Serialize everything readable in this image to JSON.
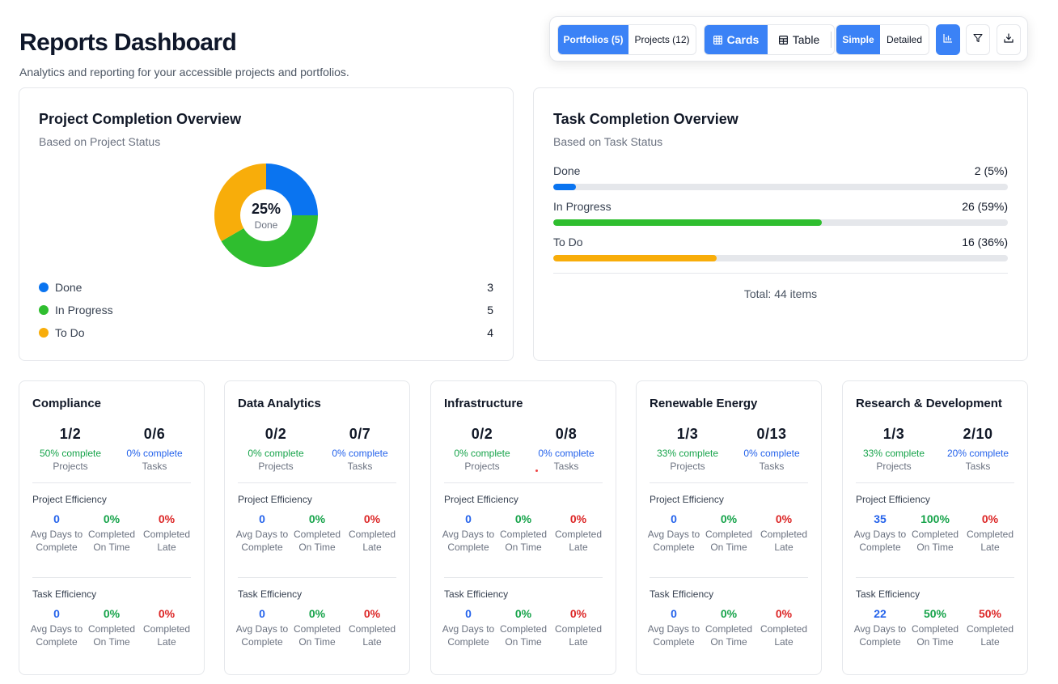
{
  "header": {
    "title": "Reports Dashboard",
    "subtitle": "Analytics and reporting for your accessible projects and portfolios."
  },
  "toolbar": {
    "scope": [
      {
        "label": "Portfolios (5)",
        "active": true
      },
      {
        "label": "Projects (12)",
        "active": false
      }
    ],
    "view": [
      {
        "label": "Cards",
        "icon": "grid-icon",
        "active": true
      },
      {
        "label": "Table",
        "icon": "table-icon",
        "active": false
      }
    ],
    "detail": [
      {
        "label": "Simple",
        "active": true
      },
      {
        "label": "Detailed",
        "active": false
      }
    ],
    "icons": [
      "chart-icon",
      "filter-icon",
      "download-icon"
    ]
  },
  "colors": {
    "done": "#0a74f0",
    "in_progress": "#2fbe2f",
    "to_do": "#f8ad0a",
    "accent": "#3b82f6"
  },
  "project_completion": {
    "title": "Project Completion Overview",
    "subtitle": "Based on Project Status",
    "center_value": "25%",
    "center_label": "Done",
    "segments": [
      {
        "label": "Done",
        "value": 3
      },
      {
        "label": "In Progress",
        "value": 5
      },
      {
        "label": "To Do",
        "value": 4
      }
    ]
  },
  "task_completion": {
    "title": "Task Completion Overview",
    "subtitle": "Based on Task Status",
    "rows": [
      {
        "label": "Done",
        "value_text": "2 (5%)",
        "fraction": 0.05
      },
      {
        "label": "In Progress",
        "value_text": "26 (59%)",
        "fraction": 0.59
      },
      {
        "label": "To Do",
        "value_text": "16 (36%)",
        "fraction": 0.36
      }
    ],
    "total": "Total: 44 items"
  },
  "portfolio_labels": {
    "projects": "Projects",
    "tasks": "Tasks",
    "project_efficiency": "Project Efficiency",
    "task_efficiency": "Task Efficiency",
    "avg_days": "Avg Days to Complete",
    "on_time": "Completed On Time",
    "late": "Completed Late"
  },
  "portfolios": [
    {
      "name": "Compliance",
      "projects": "1/2",
      "projects_pct": "50% complete",
      "tasks": "0/6",
      "tasks_pct": "0% complete",
      "project_eff": {
        "avg_days": "0",
        "on_time": "0%",
        "late": "0%"
      },
      "task_eff": {
        "avg_days": "0",
        "on_time": "0%",
        "late": "0%"
      }
    },
    {
      "name": "Data Analytics",
      "projects": "0/2",
      "projects_pct": "0% complete",
      "tasks": "0/7",
      "tasks_pct": "0% complete",
      "project_eff": {
        "avg_days": "0",
        "on_time": "0%",
        "late": "0%"
      },
      "task_eff": {
        "avg_days": "0",
        "on_time": "0%",
        "late": "0%"
      }
    },
    {
      "name": "Infrastructure",
      "projects": "0/2",
      "projects_pct": "0% complete",
      "tasks": "0/8",
      "tasks_pct": "0% complete",
      "project_eff": {
        "avg_days": "0",
        "on_time": "0%",
        "late": "0%"
      },
      "task_eff": {
        "avg_days": "0",
        "on_time": "0%",
        "late": "0%"
      }
    },
    {
      "name": "Renewable Energy",
      "projects": "1/3",
      "projects_pct": "33% complete",
      "tasks": "0/13",
      "tasks_pct": "0% complete",
      "project_eff": {
        "avg_days": "0",
        "on_time": "0%",
        "late": "0%"
      },
      "task_eff": {
        "avg_days": "0",
        "on_time": "0%",
        "late": "0%"
      }
    },
    {
      "name": "Research & Development",
      "projects": "1/3",
      "projects_pct": "33% complete",
      "tasks": "2/10",
      "tasks_pct": "20% complete",
      "project_eff": {
        "avg_days": "35",
        "on_time": "100%",
        "late": "0%"
      },
      "task_eff": {
        "avg_days": "22",
        "on_time": "50%",
        "late": "50%"
      }
    }
  ]
}
